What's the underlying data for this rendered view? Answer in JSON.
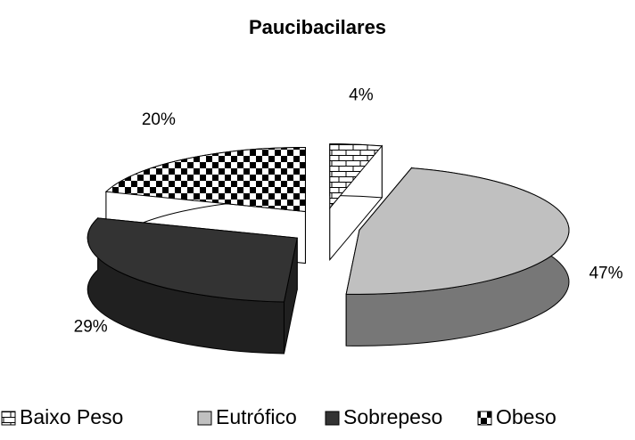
{
  "chart_data": {
    "type": "pie",
    "title": "Paucibacilares",
    "categories": [
      "Baixo Peso",
      "Eutrófico",
      "Sobrepeso",
      "Obeso"
    ],
    "values": [
      4,
      47,
      29,
      20
    ],
    "value_labels": [
      "4%",
      "47%",
      "29%",
      "20%"
    ],
    "fills": [
      "bricks",
      "#c0c0c0",
      "#333333",
      "checker"
    ],
    "legend": "bottom"
  }
}
